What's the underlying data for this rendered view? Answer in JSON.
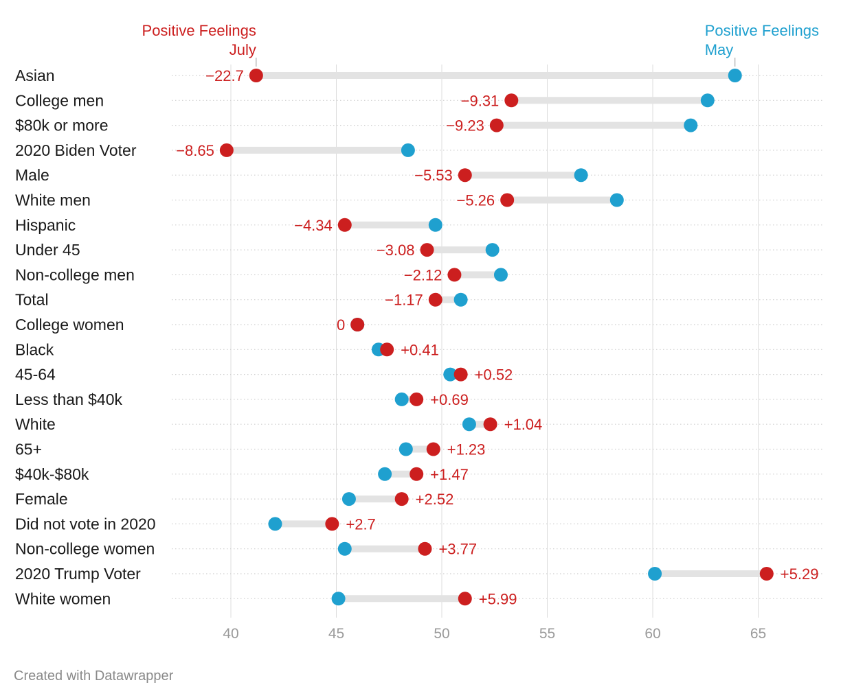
{
  "chart_data": {
    "type": "dot-range",
    "series": [
      {
        "name": "Positive Feelings\nJuly",
        "color": "#cc1f1f",
        "key": "july"
      },
      {
        "name": "Positive Feelings\nMay",
        "color": "#1fa0cf",
        "key": "may"
      }
    ],
    "legend": {
      "july_line1": "Positive Feelings",
      "july_line2": "July",
      "may_line1": "Positive Feelings",
      "may_line2": "May"
    },
    "x_ticks": [
      40,
      45,
      50,
      55,
      60,
      65
    ],
    "xlim": [
      37.2,
      67.8
    ],
    "grid": "vertical",
    "rows": [
      {
        "label": "Asian",
        "may": 63.9,
        "july": 41.2,
        "change": "−22.7"
      },
      {
        "label": "College men",
        "may": 62.6,
        "july": 53.3,
        "change": "−9.31"
      },
      {
        "label": "$80k or more",
        "may": 61.8,
        "july": 52.6,
        "change": "−9.23"
      },
      {
        "label": "2020 Biden Voter",
        "may": 48.4,
        "july": 39.8,
        "change": "−8.65"
      },
      {
        "label": "Male",
        "may": 56.6,
        "july": 51.1,
        "change": "−5.53"
      },
      {
        "label": "White men",
        "may": 58.3,
        "july": 53.1,
        "change": "−5.26"
      },
      {
        "label": "Hispanic",
        "may": 49.7,
        "july": 45.4,
        "change": "−4.34"
      },
      {
        "label": "Under 45",
        "may": 52.4,
        "july": 49.3,
        "change": "−3.08"
      },
      {
        "label": "Non-college men",
        "may": 52.8,
        "july": 50.6,
        "change": "−2.12"
      },
      {
        "label": "Total",
        "may": 50.9,
        "july": 49.7,
        "change": "−1.17"
      },
      {
        "label": "College women",
        "may": 46.0,
        "july": 46.0,
        "change": "0"
      },
      {
        "label": "Black",
        "may": 47.0,
        "july": 47.4,
        "change": "+0.41"
      },
      {
        "label": "45-64",
        "may": 50.4,
        "july": 50.9,
        "change": "+0.52"
      },
      {
        "label": "Less than $40k",
        "may": 48.1,
        "july": 48.8,
        "change": "+0.69"
      },
      {
        "label": "White",
        "may": 51.3,
        "july": 52.3,
        "change": "+1.04"
      },
      {
        "label": "65+",
        "may": 48.3,
        "july": 49.6,
        "change": "+1.23"
      },
      {
        "label": "$40k-$80k",
        "may": 47.3,
        "july": 48.8,
        "change": "+1.47"
      },
      {
        "label": "Female",
        "may": 45.6,
        "july": 48.1,
        "change": "+2.52"
      },
      {
        "label": "Did not vote in 2020",
        "may": 42.1,
        "july": 44.8,
        "change": "+2.7"
      },
      {
        "label": "Non-college women",
        "may": 45.4,
        "july": 49.2,
        "change": "+3.77"
      },
      {
        "label": "2020 Trump Voter",
        "may": 60.1,
        "july": 65.4,
        "change": "+5.29"
      },
      {
        "label": "White women",
        "may": 45.1,
        "july": 51.1,
        "change": "+5.99"
      }
    ]
  },
  "credit": "Created with Datawrapper",
  "colors": {
    "july": "#cc1f1f",
    "may": "#1fa0cf",
    "range_bar": "#e3e3e3",
    "grid": "#dddddd",
    "row_rule": "#cfcfcf"
  }
}
